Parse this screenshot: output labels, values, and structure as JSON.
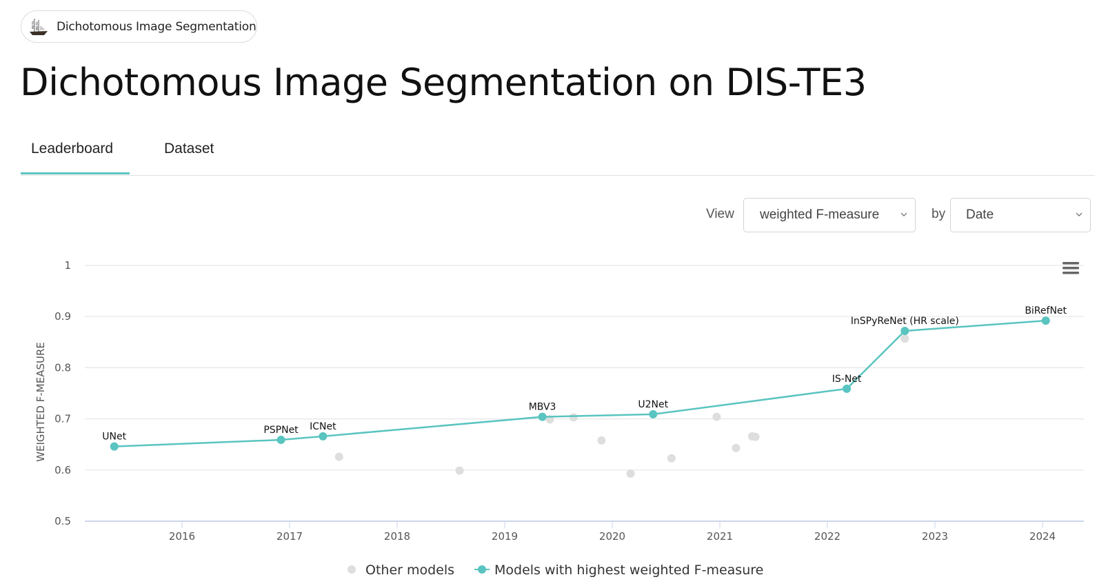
{
  "breadcrumb": {
    "label": "Dichotomous Image Segmentation",
    "icon": "ship-icon"
  },
  "page": {
    "title": "Dichotomous Image Segmentation on DIS-TE3"
  },
  "tabs": [
    {
      "label": "Leaderboard",
      "active": true
    },
    {
      "label": "Dataset",
      "active": false
    }
  ],
  "controls": {
    "view_label": "View",
    "metric_selected": "weighted F-measure",
    "by_label": "by",
    "sort_selected": "Date"
  },
  "colors": {
    "accent": "#59c4c0",
    "other": "#dedede",
    "grid": "#e6e6e6",
    "axis": "#ccd6eb"
  },
  "chart_data": {
    "type": "scatter",
    "title": "",
    "xlabel": "",
    "ylabel": "WEIGHTED F-MEASURE",
    "xlim": [
      2015.1,
      2024.3
    ],
    "ylim": [
      0.5,
      1.0
    ],
    "yticks": [
      {
        "value": 0.5,
        "label": "0.5"
      },
      {
        "value": 0.6,
        "label": "0.6"
      },
      {
        "value": 0.7,
        "label": "0.7"
      },
      {
        "value": 0.8,
        "label": "0.8"
      },
      {
        "value": 0.9,
        "label": "0.9"
      },
      {
        "value": 1.0,
        "label": "1"
      }
    ],
    "xticks": [
      {
        "value": 2016,
        "label": "2016"
      },
      {
        "value": 2017,
        "label": "2017"
      },
      {
        "value": 2018,
        "label": "2018"
      },
      {
        "value": 2019,
        "label": "2019"
      },
      {
        "value": 2020,
        "label": "2020"
      },
      {
        "value": 2021,
        "label": "2021"
      },
      {
        "value": 2022,
        "label": "2022"
      },
      {
        "value": 2023,
        "label": "2023"
      },
      {
        "value": 2024,
        "label": "2024"
      }
    ],
    "grid": true,
    "legend_position": "bottom-center",
    "series": [
      {
        "name": "Other models",
        "kind": "scatter",
        "points": [
          {
            "x": 2017.46,
            "y": 0.626
          },
          {
            "x": 2018.58,
            "y": 0.599
          },
          {
            "x": 2019.42,
            "y": 0.699
          },
          {
            "x": 2019.64,
            "y": 0.703
          },
          {
            "x": 2019.9,
            "y": 0.658
          },
          {
            "x": 2020.17,
            "y": 0.593
          },
          {
            "x": 2020.55,
            "y": 0.623
          },
          {
            "x": 2020.97,
            "y": 0.704
          },
          {
            "x": 2021.15,
            "y": 0.643
          },
          {
            "x": 2021.3,
            "y": 0.666
          },
          {
            "x": 2021.33,
            "y": 0.665
          },
          {
            "x": 2022.72,
            "y": 0.857
          }
        ]
      },
      {
        "name": "Models with highest weighted F-measure",
        "kind": "line",
        "points": [
          {
            "x": 2015.37,
            "y": 0.646,
            "label": "UNet"
          },
          {
            "x": 2016.92,
            "y": 0.659,
            "label": "PSPNet"
          },
          {
            "x": 2017.31,
            "y": 0.666,
            "label": "ICNet"
          },
          {
            "x": 2019.35,
            "y": 0.704,
            "label": "MBV3"
          },
          {
            "x": 2020.38,
            "y": 0.709,
            "label": "U2Net"
          },
          {
            "x": 2022.18,
            "y": 0.759,
            "label": "IS-Net"
          },
          {
            "x": 2022.72,
            "y": 0.872,
            "label": "InSPyReNet (HR scale)"
          },
          {
            "x": 2024.03,
            "y": 0.892,
            "label": "BiRefNet"
          }
        ]
      }
    ]
  },
  "chart_menu": {
    "icon": "hamburger-menu-icon"
  }
}
